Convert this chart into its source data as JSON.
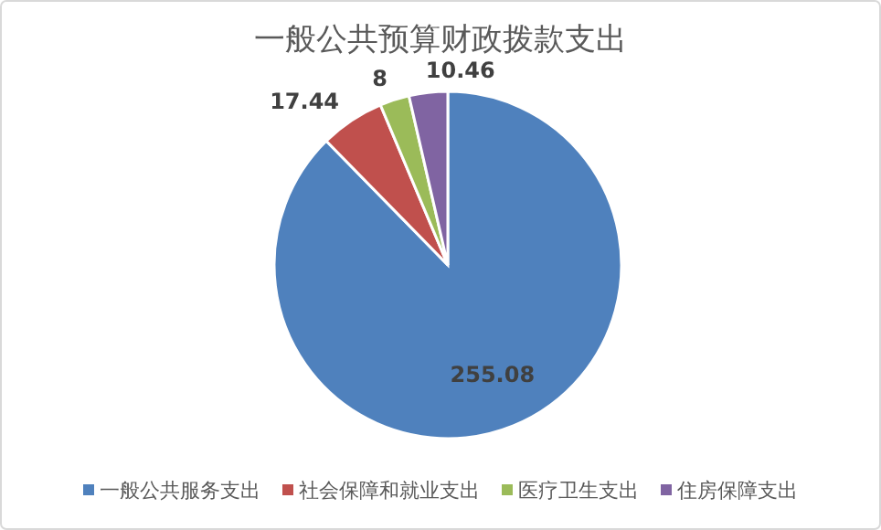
{
  "chart_data": {
    "type": "pie",
    "title": "一般公共预算财政拨款支出",
    "categories": [
      "一般公共服务支出",
      "社会保障和就业支出",
      "医疗卫生支出",
      "住房保障支出"
    ],
    "values": [
      255.08,
      17.44,
      8,
      10.46
    ],
    "colors": [
      "#4f81bd",
      "#c0504d",
      "#9bbb59",
      "#8064a2"
    ],
    "data_labels": true,
    "legend": "bottom"
  }
}
